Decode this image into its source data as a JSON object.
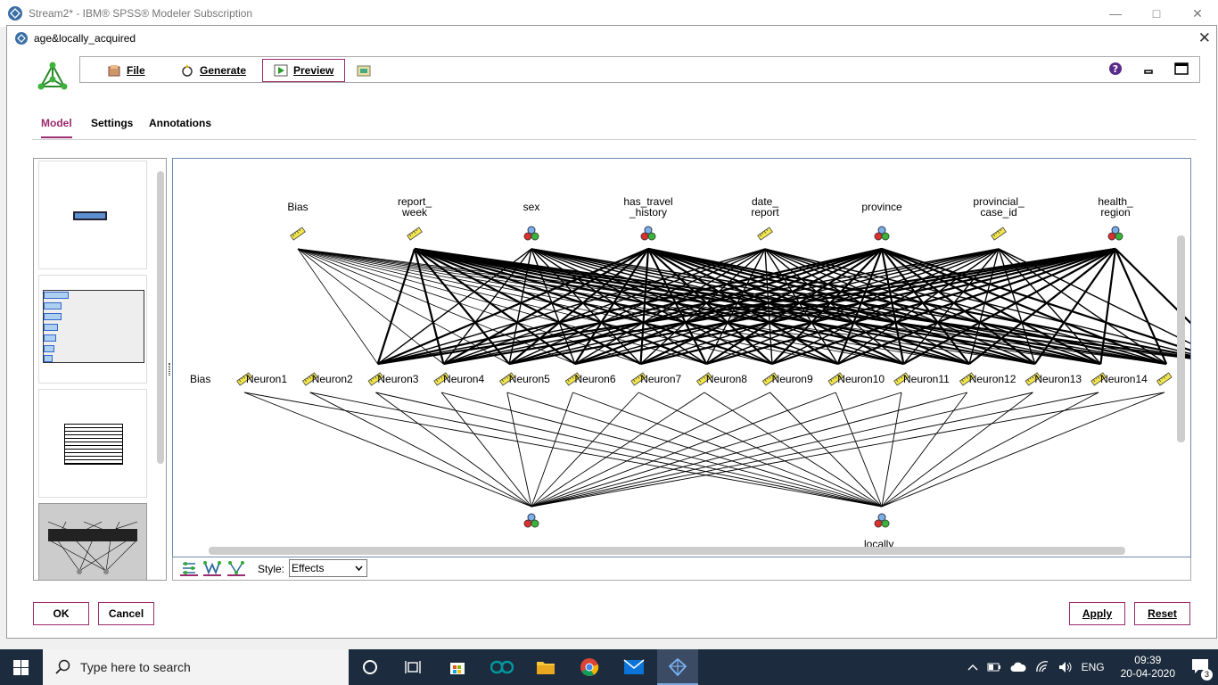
{
  "outer_window": {
    "title": "Stream2* - IBM® SPSS® Modeler Subscription"
  },
  "dialog": {
    "title": "age&locally_acquired"
  },
  "toolbar": {
    "file": "File",
    "generate": "Generate",
    "preview": "Preview"
  },
  "tabs": [
    "Model",
    "Settings",
    "Annotations"
  ],
  "network": {
    "inputs": [
      {
        "label": "Bias",
        "type": "continuous"
      },
      {
        "label": "report_\nweek",
        "type": "continuous"
      },
      {
        "label": "sex",
        "type": "set"
      },
      {
        "label": "has_travel\n_history",
        "type": "set"
      },
      {
        "label": "date_\nreport",
        "type": "continuous"
      },
      {
        "label": "province",
        "type": "set"
      },
      {
        "label": "provincial_\ncase_id",
        "type": "continuous"
      },
      {
        "label": "health_\nregion",
        "type": "set"
      }
    ],
    "hidden_bias_label": "Bias",
    "hidden": [
      "Neuron1",
      "Neuron2",
      "Neuron3",
      "Neuron4",
      "Neuron5",
      "Neuron6",
      "Neuron7",
      "Neuron8",
      "Neuron9",
      "Neuron10",
      "Neuron11",
      "Neuron12",
      "Neuron13",
      "Neuron14"
    ],
    "outputs": [
      {
        "label": "",
        "type": "set"
      },
      {
        "label": "locally_",
        "type": "set"
      }
    ]
  },
  "bottombar": {
    "style_label": "Style:",
    "style_value": "Effects"
  },
  "buttons": {
    "ok": "OK",
    "cancel": "Cancel",
    "apply": "Apply",
    "reset": "Reset"
  },
  "taskbar": {
    "search_placeholder": "Type here to search",
    "lang": "ENG",
    "time": "09:39",
    "date": "20-04-2020",
    "notifications": "3"
  },
  "colors": {
    "accent": "#9b2a6e",
    "taskbar": "#1c2b3d"
  }
}
